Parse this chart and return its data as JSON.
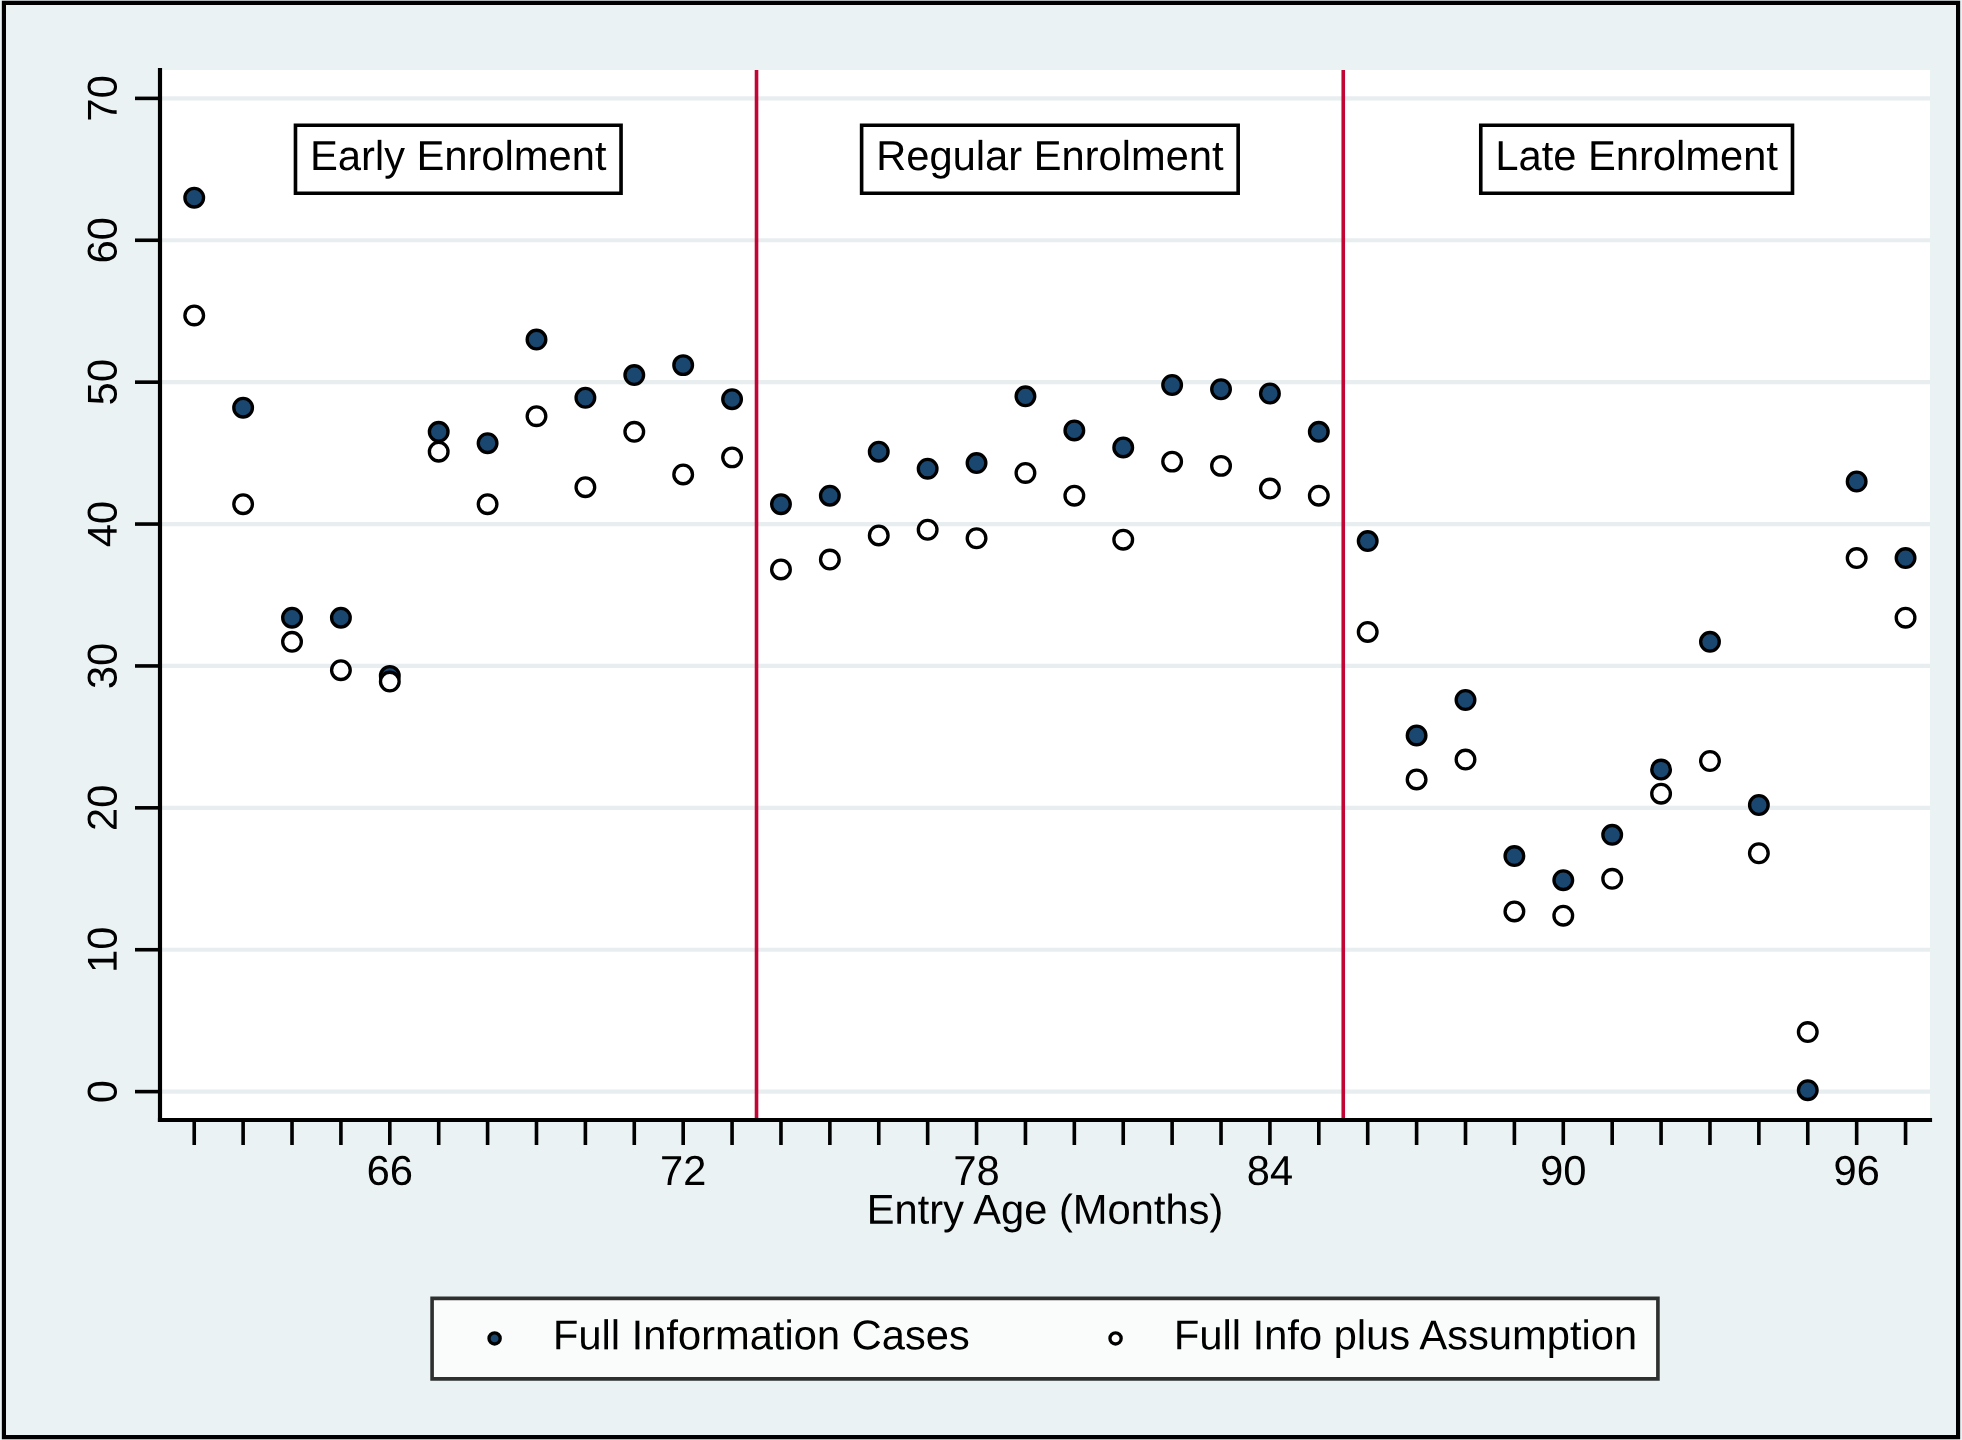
{
  "chart_data": {
    "type": "scatter",
    "xlabel": "Entry Age (Months)",
    "x": [
      62,
      63,
      64,
      65,
      66,
      67,
      68,
      69,
      70,
      71,
      72,
      73,
      74,
      75,
      76,
      77,
      78,
      79,
      80,
      81,
      82,
      83,
      84,
      85,
      86,
      87,
      88,
      89,
      90,
      91,
      92,
      93,
      94,
      95,
      96,
      97
    ],
    "series": [
      {
        "name": "Full Information Cases",
        "color": "#1a476f",
        "values": [
          63.0,
          48.2,
          33.4,
          33.4,
          29.3,
          46.5,
          45.7,
          53.0,
          48.9,
          50.5,
          51.2,
          48.8,
          41.4,
          42.0,
          45.1,
          43.9,
          44.3,
          49.0,
          46.6,
          45.4,
          49.8,
          49.5,
          49.2,
          46.5,
          38.8,
          25.1,
          27.6,
          16.6,
          14.9,
          18.1,
          22.7,
          31.7,
          20.2,
          0.1,
          43.0,
          37.6
        ]
      },
      {
        "name": "Full Info plus Assumption",
        "color": "#ffffff",
        "values": [
          54.7,
          41.4,
          31.7,
          29.7,
          28.9,
          45.1,
          41.4,
          47.6,
          42.6,
          46.5,
          43.5,
          44.7,
          36.8,
          37.5,
          39.2,
          39.6,
          39.0,
          43.6,
          42.0,
          38.9,
          44.4,
          44.1,
          42.5,
          42.0,
          32.4,
          22.0,
          23.4,
          12.7,
          12.4,
          15.0,
          21.0,
          23.3,
          16.8,
          4.2,
          37.6,
          33.4
        ]
      }
    ],
    "xlim": [
      61.3,
      97.5
    ],
    "ylim": [
      -2,
      72
    ],
    "xticks": [
      {
        "value": 62,
        "label": null
      },
      {
        "value": 63,
        "label": null
      },
      {
        "value": 64,
        "label": null
      },
      {
        "value": 65,
        "label": null
      },
      66,
      {
        "value": 67,
        "label": null
      },
      {
        "value": 68,
        "label": null
      },
      {
        "value": 69,
        "label": null
      },
      {
        "value": 70,
        "label": null
      },
      {
        "value": 71,
        "label": null
      },
      72,
      {
        "value": 73,
        "label": null
      },
      {
        "value": 74,
        "label": null
      },
      {
        "value": 75,
        "label": null
      },
      {
        "value": 76,
        "label": null
      },
      {
        "value": 77,
        "label": null
      },
      78,
      {
        "value": 79,
        "label": null
      },
      {
        "value": 80,
        "label": null
      },
      {
        "value": 81,
        "label": null
      },
      {
        "value": 82,
        "label": null
      },
      {
        "value": 83,
        "label": null
      },
      84,
      {
        "value": 85,
        "label": null
      },
      {
        "value": 86,
        "label": null
      },
      {
        "value": 87,
        "label": null
      },
      {
        "value": 88,
        "label": null
      },
      {
        "value": 89,
        "label": null
      },
      90,
      {
        "value": 91,
        "label": null
      },
      {
        "value": 92,
        "label": null
      },
      {
        "value": 93,
        "label": null
      },
      {
        "value": 94,
        "label": null
      },
      {
        "value": 95,
        "label": null
      },
      96,
      {
        "value": 97,
        "label": null
      }
    ],
    "yticks": [
      0,
      10,
      20,
      30,
      40,
      50,
      60,
      70
    ],
    "ref_lines": [
      {
        "axis": "x",
        "value": 73.5,
        "color": "#c10534"
      },
      {
        "axis": "x",
        "value": 85.5,
        "color": "#c10534"
      }
    ],
    "annotations": [
      "Early Enrolment",
      "Regular Enrolment",
      "Late Enrolment"
    ],
    "grid": "y",
    "legend": "bottom",
    "marker": "circle"
  }
}
